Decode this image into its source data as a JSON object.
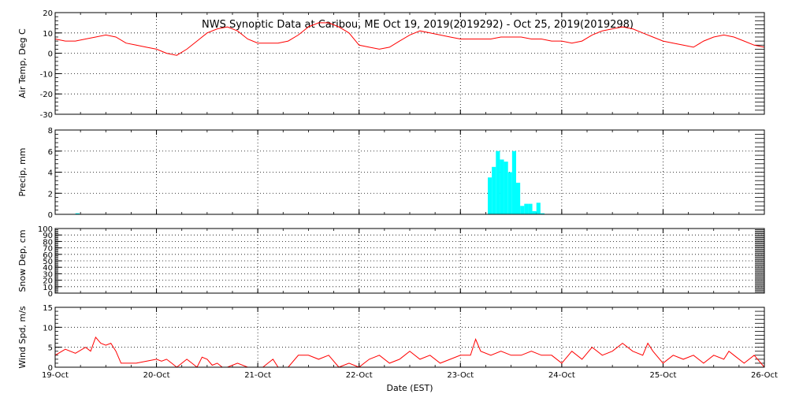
{
  "title": "NWS Synoptic Data at Caribou, ME   Oct 19, 2019(2019292) - Oct 25, 2019(2019298)",
  "x_axis_title": "Date (EST)",
  "x_tick_labels": [
    "19-Oct",
    "20-Oct",
    "21-Oct",
    "22-Oct",
    "23-Oct",
    "24-Oct",
    "25-Oct",
    "26-Oct"
  ],
  "colors": {
    "temp": "#ff0000",
    "precip": "#00ffff",
    "wind": "#ff0000",
    "axis": "#000000"
  },
  "chart_data": [
    {
      "type": "line",
      "ylabel": "Air Temp, Deg C",
      "ylim": [
        -30,
        20
      ],
      "yticks": [
        -30,
        -20,
        -10,
        0,
        10,
        20
      ],
      "xlim": [
        0,
        7
      ],
      "grid": true,
      "x": [
        0,
        0.1,
        0.2,
        0.3,
        0.4,
        0.5,
        0.6,
        0.7,
        0.8,
        0.9,
        1.0,
        1.1,
        1.2,
        1.3,
        1.4,
        1.5,
        1.6,
        1.7,
        1.8,
        1.9,
        2.0,
        2.1,
        2.2,
        2.3,
        2.4,
        2.5,
        2.6,
        2.7,
        2.8,
        2.9,
        3.0,
        3.1,
        3.2,
        3.3,
        3.4,
        3.5,
        3.6,
        3.7,
        3.8,
        3.9,
        4.0,
        4.1,
        4.2,
        4.3,
        4.4,
        4.5,
        4.6,
        4.7,
        4.8,
        4.9,
        5.0,
        5.1,
        5.2,
        5.3,
        5.4,
        5.5,
        5.6,
        5.7,
        5.8,
        5.9,
        6.0,
        6.1,
        6.2,
        6.3,
        6.4,
        6.5,
        6.6,
        6.7,
        6.8,
        6.9,
        7.0
      ],
      "y": [
        7,
        6,
        6,
        7,
        8,
        9,
        8,
        5,
        4,
        3,
        2,
        0,
        -1,
        2,
        6,
        10,
        12,
        13,
        11,
        7,
        5,
        5,
        5,
        6,
        9,
        13,
        15,
        15,
        13,
        10,
        4,
        3,
        2,
        3,
        6,
        9,
        11,
        10,
        9,
        8,
        7,
        7,
        7,
        7,
        8,
        8,
        8,
        7,
        7,
        6,
        6,
        5,
        6,
        9,
        11,
        12,
        13,
        12,
        10,
        8,
        6,
        5,
        4,
        3,
        6,
        8,
        9,
        8,
        6,
        4,
        3
      ]
    },
    {
      "type": "bar",
      "ylabel": "Precip, mm",
      "ylim": [
        0,
        8
      ],
      "yticks": [
        0,
        2,
        4,
        6,
        8
      ],
      "xlim": [
        0,
        7
      ],
      "grid": true,
      "x": [
        0.2,
        4.27,
        4.31,
        4.35,
        4.39,
        4.43,
        4.47,
        4.51,
        4.55,
        4.59,
        4.63,
        4.67,
        4.71,
        4.75,
        4.79
      ],
      "y": [
        0.1,
        3.5,
        4.5,
        6.0,
        5.2,
        5.0,
        4.0,
        6.0,
        3.0,
        0.8,
        1.0,
        1.0,
        0.3,
        1.1,
        0.1
      ]
    },
    {
      "type": "line",
      "ylabel": "Snow Dep, cm",
      "ylim": [
        0,
        100
      ],
      "yticks": [
        0,
        10,
        20,
        30,
        40,
        50,
        60,
        70,
        80,
        90,
        100
      ],
      "xlim": [
        0,
        7
      ],
      "grid": true,
      "x": [],
      "y": []
    },
    {
      "type": "line",
      "ylabel": "Wind Spd, m/s",
      "ylim": [
        0,
        15
      ],
      "yticks": [
        0,
        5,
        10,
        15
      ],
      "xlim": [
        0,
        7
      ],
      "grid": true,
      "x": [
        0,
        0.1,
        0.2,
        0.3,
        0.35,
        0.4,
        0.45,
        0.5,
        0.55,
        0.6,
        0.65,
        0.7,
        0.8,
        0.9,
        1.0,
        1.05,
        1.1,
        1.15,
        1.2,
        1.3,
        1.35,
        1.4,
        1.45,
        1.5,
        1.55,
        1.6,
        1.65,
        1.7,
        1.8,
        1.9,
        2.0,
        2.05,
        2.1,
        2.15,
        2.2,
        2.3,
        2.4,
        2.5,
        2.6,
        2.7,
        2.8,
        2.9,
        3.0,
        3.05,
        3.1,
        3.2,
        3.3,
        3.4,
        3.5,
        3.6,
        3.7,
        3.8,
        3.9,
        4.0,
        4.1,
        4.15,
        4.2,
        4.3,
        4.4,
        4.5,
        4.6,
        4.7,
        4.8,
        4.9,
        5.0,
        5.1,
        5.2,
        5.3,
        5.4,
        5.5,
        5.6,
        5.7,
        5.8,
        5.85,
        5.9,
        6.0,
        6.1,
        6.2,
        6.3,
        6.4,
        6.5,
        6.6,
        6.65,
        6.7,
        6.8,
        6.9,
        7.0
      ],
      "y": [
        3,
        4.5,
        3.5,
        5,
        4,
        7.5,
        6,
        5.5,
        6,
        4,
        1,
        1,
        1,
        1.5,
        2,
        1.5,
        2,
        1,
        0,
        2,
        1,
        0,
        2.5,
        2,
        0.5,
        1,
        0,
        0,
        1,
        0,
        0,
        0,
        1,
        2,
        0,
        0,
        3,
        3,
        2,
        3,
        0,
        1,
        0,
        1,
        2,
        3,
        1,
        2,
        4,
        2,
        3,
        1,
        2,
        3,
        3,
        7,
        4,
        3,
        4,
        3,
        3,
        4,
        3,
        3,
        1,
        4,
        2,
        5,
        3,
        4,
        6,
        4,
        3,
        6,
        4,
        1,
        3,
        2,
        3,
        1,
        3,
        2,
        4,
        3,
        1,
        3,
        0
      ]
    }
  ]
}
